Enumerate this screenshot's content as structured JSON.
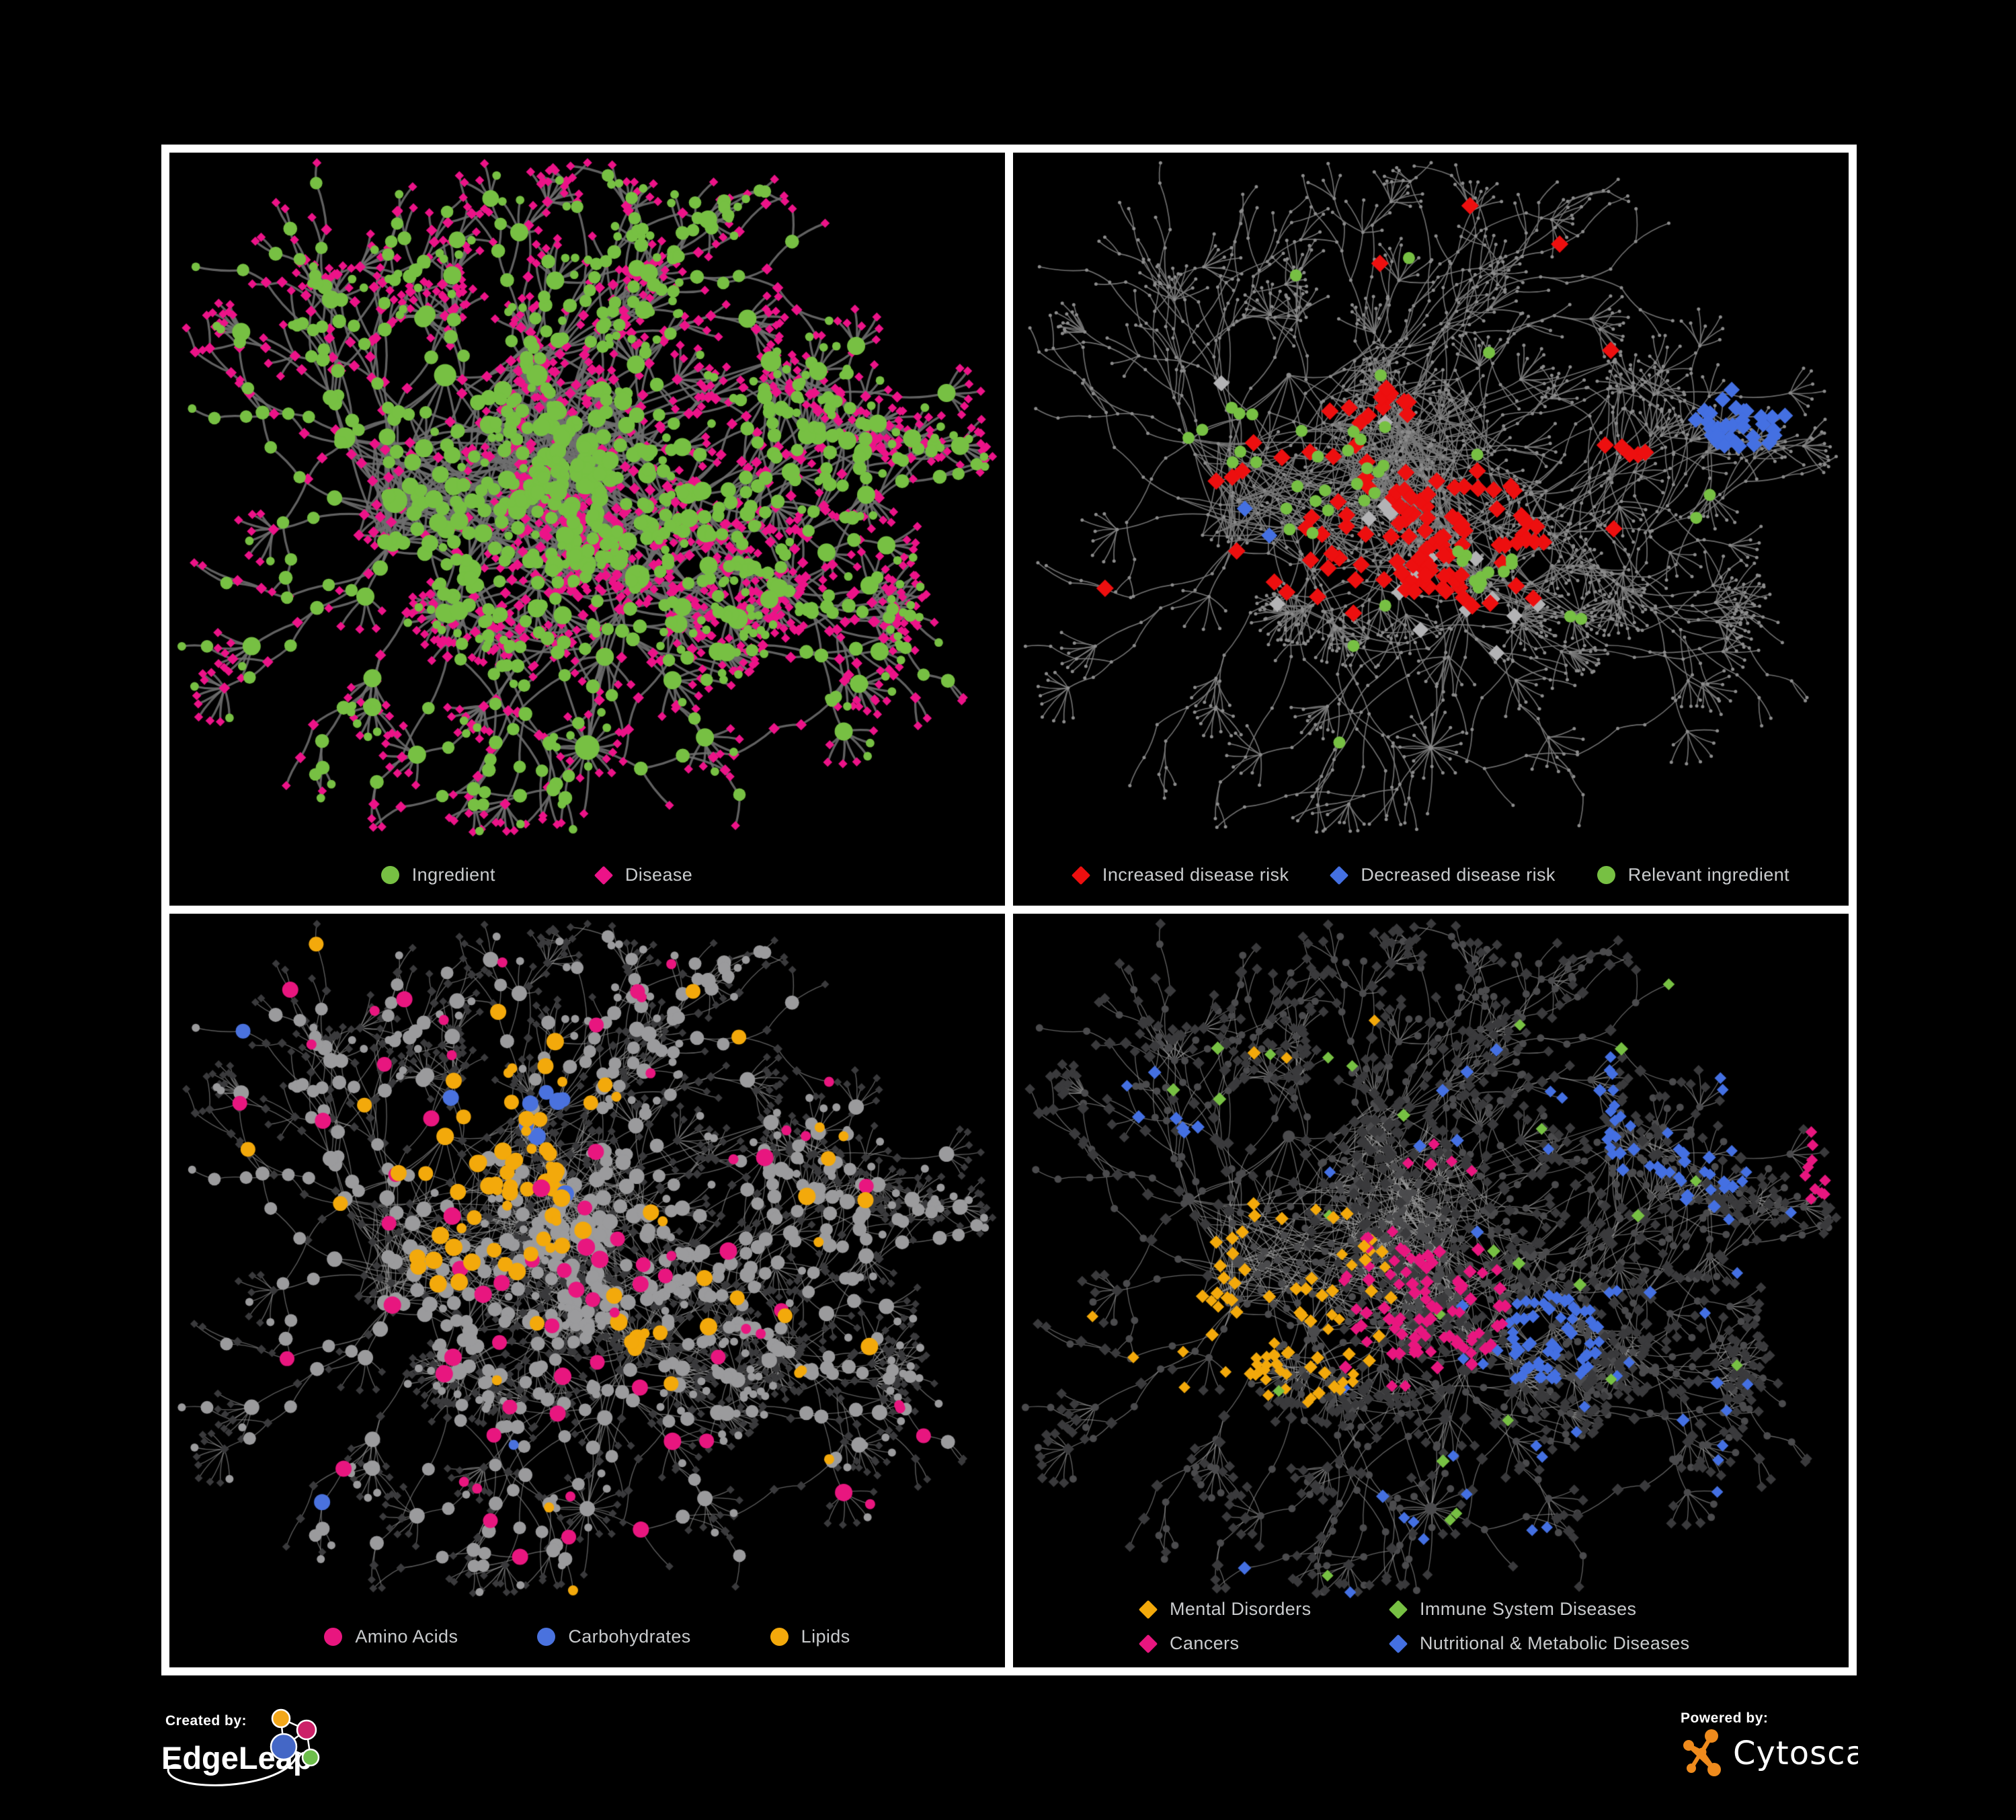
{
  "palette": {
    "background": "#000000",
    "frame": "#FFFFFF",
    "legend_text": "#C9CBCD",
    "ingredient_green": "#77C043",
    "disease_pink": "#EC1388",
    "risk_red": "#ED0F0F",
    "risk_blue": "#4470E2",
    "neutral_silver": "#B3B3B5",
    "lipid_amber": "#F3A90B",
    "amino_pink": "#E8167F",
    "carb_blue": "#4A72DE",
    "immune_green": "#77C043",
    "nutri_blue": "#4470E2",
    "mental_amber": "#F3A90B",
    "cancer_pink": "#E8167F",
    "gray_circle": "#9B9B9D",
    "dark_gray_circle": "#4B4B4D",
    "dark_diamond": "#3A3A3C",
    "tiny_dot_gray": "#8C8C8C",
    "edge_panel1": "#6E6E6E",
    "edge_panel2": "#7A7A7A",
    "edge_panel3": "#9A9A9A",
    "edge_panel4": "#A0A0A0",
    "edgeleap_blue": "#4467C6",
    "edgeleap_orange": "#F2A71B",
    "edgeleap_magenta": "#CC2168",
    "edgeleap_green": "#6DBE4B",
    "cytoscape_orange": "#EF8B1D"
  },
  "panels": [
    {
      "name": "ingredient-disease-network",
      "legend": [
        {
          "label": "Ingredient",
          "shape": "circle",
          "color": "#77C043"
        },
        {
          "label": "Disease",
          "shape": "diamond",
          "color": "#EC1388"
        }
      ]
    },
    {
      "name": "disease-risk-network",
      "legend": [
        {
          "label": "Increased disease risk",
          "shape": "diamond",
          "color": "#ED0F0F"
        },
        {
          "label": "Decreased disease risk",
          "shape": "diamond",
          "color": "#4470E2"
        },
        {
          "label": "Relevant ingredient",
          "shape": "circle",
          "color": "#77C043"
        }
      ]
    },
    {
      "name": "nutrient-class-network",
      "legend": [
        {
          "label": "Amino Acids",
          "shape": "circle",
          "color": "#E8167F"
        },
        {
          "label": "Carbohydrates",
          "shape": "circle",
          "color": "#4A72DE"
        },
        {
          "label": "Lipids",
          "shape": "circle",
          "color": "#F3A90B"
        }
      ]
    },
    {
      "name": "disease-class-network",
      "legend": [
        {
          "label": "Mental Disorders",
          "shape": "diamond",
          "color": "#F3A90B"
        },
        {
          "label": "Immune System Diseases",
          "shape": "diamond",
          "color": "#77C043"
        },
        {
          "label": "Cancers",
          "shape": "diamond",
          "color": "#E8167F"
        },
        {
          "label": "Nutritional & Metabolic Diseases",
          "shape": "diamond",
          "color": "#4470E2"
        }
      ]
    }
  ],
  "footer": {
    "created_by_label": "Created by:",
    "created_by_brand": "EdgeLeap",
    "powered_by_label": "Powered by:",
    "powered_by_brand": "Cytoscape"
  },
  "network": {
    "seed": 7
  }
}
